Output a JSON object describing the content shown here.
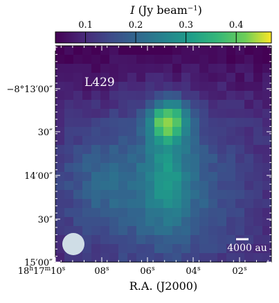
{
  "colorbar": {
    "label_italic": "I",
    "label_rest": " (Jy beam",
    "label_exp": "−1",
    "label_close": ")",
    "ticks": [
      "0.1",
      "0.2",
      "0.3",
      "0.4"
    ],
    "range": [
      0.04,
      0.47
    ]
  },
  "map": {
    "source_label": "L429",
    "scale_bar_label": "4000 au",
    "xlabel": "R.A. (J2000)",
    "x_ticks": [
      {
        "main": "18",
        "sup1": "h",
        "mid": "17",
        "sup2": "m",
        "end": "10",
        "sup3": "s"
      },
      {
        "main": "08",
        "sup3": "s"
      },
      {
        "main": "06",
        "sup3": "s"
      },
      {
        "main": "04",
        "sup3": "s"
      },
      {
        "main": "02",
        "sup3": "s"
      }
    ],
    "y_ticks": [
      "−8°13′00″",
      "30″",
      "14′00″",
      "30″",
      "15′00″"
    ]
  },
  "chart_data": {
    "type": "heatmap",
    "title": "L429",
    "xlabel": "R.A. (J2000)",
    "ylabel": "",
    "colorbar_label": "I (Jy beam−1)",
    "value_range": [
      0.04,
      0.47
    ],
    "peak_value": 0.45,
    "peak_position": {
      "ra": "18h17m05.5s",
      "dec": "−8°13′30″"
    },
    "ra_ticks": [
      "18h17m10s",
      "08s",
      "06s",
      "04s",
      "02s"
    ],
    "dec_ticks": [
      "−8°13′00″",
      "30″",
      "14′00″",
      "30″",
      "15′00″"
    ],
    "colormap": "viridis"
  }
}
